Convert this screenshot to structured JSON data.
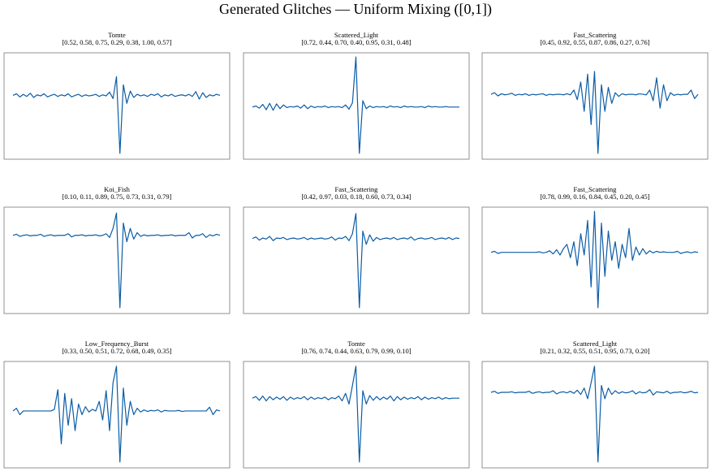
{
  "title": "Generated Glitches — Uniform Mixing ([0,1])",
  "chart_data": [
    {
      "type": "line",
      "title": "Tomte",
      "subtitle": "[0.52, 0.58, 0.75, 0.29, 0.38, 1.00, 0.57]",
      "color": "#0b5ca6",
      "ylim": [
        -1,
        1
      ],
      "values": [
        0.2,
        0.23,
        0.17,
        0.22,
        0.18,
        0.24,
        0.16,
        0.21,
        0.19,
        0.23,
        0.17,
        0.2,
        0.22,
        0.18,
        0.21,
        0.19,
        0.23,
        0.17,
        0.2,
        0.22,
        0.18,
        0.21,
        0.19,
        0.2,
        0.22,
        0.18,
        0.21,
        0.19,
        0.26,
        0.14,
        0.55,
        -0.89,
        0.4,
        0.05,
        0.28,
        0.16,
        0.22,
        0.19,
        0.21,
        0.18,
        0.22,
        0.2,
        0.23,
        0.17,
        0.21,
        0.19,
        0.22,
        0.18,
        0.2,
        0.21,
        0.19,
        0.22,
        0.18,
        0.27,
        0.13,
        0.25,
        0.16,
        0.21,
        0.19,
        0.22,
        0.2
      ]
    },
    {
      "type": "line",
      "title": "Scattered_Light",
      "subtitle": "[0.72, 0.44, 0.70, 0.40, 0.95, 0.31, 0.48]",
      "color": "#0b5ca6",
      "ylim": [
        -1,
        1
      ],
      "values": [
        -0.02,
        0,
        -0.04,
        0.03,
        -0.07,
        0.05,
        -0.08,
        0.04,
        -0.05,
        0.02,
        -0.03,
        -0.01,
        -0.02,
        0,
        -0.04,
        0.02,
        -0.05,
        0,
        -0.03,
        -0.01,
        -0.02,
        0,
        -0.03,
        -0.01,
        -0.02,
        -0.01,
        -0.03,
        0.02,
        -0.06,
        0.06,
        0.92,
        -0.89,
        0.1,
        -0.05,
        0,
        -0.03,
        -0.01,
        -0.02,
        -0.01,
        -0.03,
        0,
        -0.02,
        -0.01,
        -0.03,
        0,
        -0.02,
        -0.01,
        -0.02,
        -0.02,
        -0.01,
        -0.03,
        0,
        -0.02,
        -0.01,
        -0.02,
        -0.02,
        -0.01,
        -0.02,
        -0.02,
        -0.02,
        -0.02
      ]
    },
    {
      "type": "line",
      "title": "Fast_Scattering",
      "subtitle": "[0.45, 0.92, 0.55, 0.87, 0.86, 0.27, 0.76]",
      "color": "#0b5ca6",
      "ylim": [
        -1,
        1
      ],
      "values": [
        0.22,
        0.25,
        0.19,
        0.23,
        0.21,
        0.22,
        0.24,
        0.2,
        0.22,
        0.21,
        0.23,
        0.2,
        0.22,
        0.21,
        0.22,
        0.23,
        0.2,
        0.22,
        0.21,
        0.22,
        0.22,
        0.21,
        0.23,
        0.21,
        0.3,
        0.12,
        0.45,
        -0.1,
        0.6,
        -0.35,
        0.65,
        -0.89,
        0.4,
        -0.1,
        0.35,
        0.05,
        0.25,
        0.18,
        0.23,
        0.21,
        0.22,
        0.22,
        0.21,
        0.23,
        0.22,
        0.21,
        0.3,
        0.1,
        0.53,
        -0.04,
        0.4,
        0.1,
        0.25,
        0.2,
        0.22,
        0.21,
        0.22,
        0.22,
        0.3,
        0.14,
        0.22
      ]
    },
    {
      "type": "line",
      "title": "Koi_Fish",
      "subtitle": "[0.10, 0.11, 0.89, 0.75, 0.73, 0.31, 0.79]",
      "color": "#0b5ca6",
      "ylim": [
        -1,
        1
      ],
      "values": [
        0.47,
        0.49,
        0.45,
        0.47,
        0.48,
        0.46,
        0.47,
        0.47,
        0.49,
        0.45,
        0.47,
        0.48,
        0.46,
        0.47,
        0.47,
        0.47,
        0.5,
        0.44,
        0.47,
        0.47,
        0.48,
        0.46,
        0.47,
        0.47,
        0.48,
        0.46,
        0.47,
        0.5,
        0.43,
        0.6,
        0.89,
        -0.89,
        0.7,
        0.35,
        0.6,
        0.4,
        0.52,
        0.45,
        0.48,
        0.46,
        0.47,
        0.47,
        0.48,
        0.46,
        0.47,
        0.47,
        0.48,
        0.46,
        0.47,
        0.47,
        0.47,
        0.52,
        0.42,
        0.47,
        0.47,
        0.5,
        0.43,
        0.48,
        0.46,
        0.49,
        0.47
      ]
    },
    {
      "type": "line",
      "title": "Fast_Scattering",
      "subtitle": "[0.42, 0.97, 0.03, 0.18, 0.60, 0.73, 0.34]",
      "color": "#0b5ca6",
      "ylim": [
        -1,
        1
      ],
      "values": [
        0.41,
        0.44,
        0.38,
        0.42,
        0.4,
        0.45,
        0.37,
        0.42,
        0.41,
        0.43,
        0.39,
        0.41,
        0.42,
        0.4,
        0.41,
        0.43,
        0.39,
        0.42,
        0.4,
        0.41,
        0.42,
        0.4,
        0.41,
        0.44,
        0.38,
        0.42,
        0.41,
        0.45,
        0.37,
        0.5,
        0.88,
        -0.89,
        0.55,
        0.3,
        0.48,
        0.36,
        0.43,
        0.39,
        0.41,
        0.42,
        0.4,
        0.43,
        0.39,
        0.41,
        0.42,
        0.4,
        0.44,
        0.38,
        0.41,
        0.42,
        0.4,
        0.41,
        0.43,
        0.39,
        0.41,
        0.42,
        0.4,
        0.43,
        0.39,
        0.42,
        0.41
      ]
    },
    {
      "type": "line",
      "title": "Fast_Scattering",
      "subtitle": "[0.78, 0.99, 0.16, 0.84, 0.45, 0.20, 0.45]",
      "color": "#0b5ca6",
      "ylim": [
        -1,
        1
      ],
      "values": [
        0.15,
        0.17,
        0.13,
        0.15,
        0.15,
        0.15,
        0.15,
        0.15,
        0.15,
        0.15,
        0.15,
        0.15,
        0.15,
        0.15,
        0.16,
        0.14,
        0.15,
        0.18,
        0.12,
        0.2,
        0.1,
        0.22,
        0.3,
        0.05,
        0.35,
        -0.1,
        0.5,
        0.1,
        0.75,
        -0.5,
        0.92,
        -0.89,
        0.7,
        -0.3,
        0.55,
        0.0,
        0.35,
        -0.15,
        0.3,
        0.05,
        0.6,
        0.0,
        0.25,
        0.1,
        0.22,
        0.12,
        0.18,
        0.14,
        0.17,
        0.15,
        0.16,
        0.15,
        0.15,
        0.15,
        0.17,
        0.13,
        0.15,
        0.16,
        0.14,
        0.16,
        0.15
      ]
    },
    {
      "type": "line",
      "title": "Low_Frequency_Burst",
      "subtitle": "[0.33, 0.50, 0.51, 0.72, 0.68, 0.49, 0.35]",
      "color": "#0b5ca6",
      "ylim": [
        -1,
        1
      ],
      "values": [
        0.07,
        0.12,
        0.0,
        0.07,
        0.07,
        0.07,
        0.07,
        0.07,
        0.07,
        0.07,
        0.07,
        0.07,
        0.1,
        0.47,
        -0.55,
        0.4,
        -0.2,
        0.3,
        -0.3,
        0.2,
        0.0,
        0.15,
        0.05,
        0.1,
        0.07,
        0.25,
        -0.1,
        0.45,
        -0.3,
        0.6,
        0.91,
        -0.89,
        0.5,
        -0.2,
        0.25,
        0.0,
        0.12,
        0.05,
        0.09,
        0.06,
        0.08,
        0.07,
        0.09,
        0.05,
        0.08,
        0.07,
        0.07,
        0.07,
        0.08,
        0.06,
        0.07,
        0.07,
        0.07,
        0.07,
        0.07,
        0.07,
        0.07,
        0.14,
        0.0,
        0.09,
        0.07
      ]
    },
    {
      "type": "line",
      "title": "Tomte",
      "subtitle": "[0.76, 0.74, 0.44, 0.63, 0.79, 0.99, 0.10]",
      "color": "#0b5ca6",
      "ylim": [
        -1,
        1
      ],
      "values": [
        0.31,
        0.34,
        0.27,
        0.35,
        0.26,
        0.34,
        0.28,
        0.33,
        0.29,
        0.34,
        0.27,
        0.33,
        0.29,
        0.32,
        0.3,
        0.34,
        0.28,
        0.33,
        0.29,
        0.32,
        0.3,
        0.33,
        0.28,
        0.32,
        0.3,
        0.35,
        0.26,
        0.4,
        0.2,
        0.55,
        0.91,
        -0.89,
        0.45,
        0.2,
        0.36,
        0.27,
        0.34,
        0.28,
        0.33,
        0.29,
        0.35,
        0.26,
        0.34,
        0.28,
        0.33,
        0.29,
        0.32,
        0.3,
        0.34,
        0.28,
        0.33,
        0.29,
        0.32,
        0.3,
        0.33,
        0.29,
        0.32,
        0.3,
        0.31,
        0.31,
        0.31
      ]
    },
    {
      "type": "line",
      "title": "Scattered_Light",
      "subtitle": "[0.21, 0.32, 0.55, 0.51, 0.95, 0.73, 0.20]",
      "color": "#0b5ca6",
      "ylim": [
        -1,
        1
      ],
      "values": [
        0.42,
        0.44,
        0.4,
        0.42,
        0.42,
        0.42,
        0.43,
        0.41,
        0.42,
        0.42,
        0.42,
        0.44,
        0.4,
        0.42,
        0.43,
        0.41,
        0.42,
        0.42,
        0.45,
        0.39,
        0.42,
        0.43,
        0.41,
        0.44,
        0.4,
        0.46,
        0.38,
        0.5,
        0.3,
        0.6,
        0.91,
        -0.89,
        0.55,
        0.3,
        0.5,
        0.38,
        0.45,
        0.4,
        0.43,
        0.41,
        0.42,
        0.45,
        0.39,
        0.43,
        0.41,
        0.42,
        0.47,
        0.37,
        0.43,
        0.42,
        0.41,
        0.44,
        0.4,
        0.42,
        0.42,
        0.43,
        0.41,
        0.42,
        0.44,
        0.41,
        0.42
      ]
    }
  ]
}
